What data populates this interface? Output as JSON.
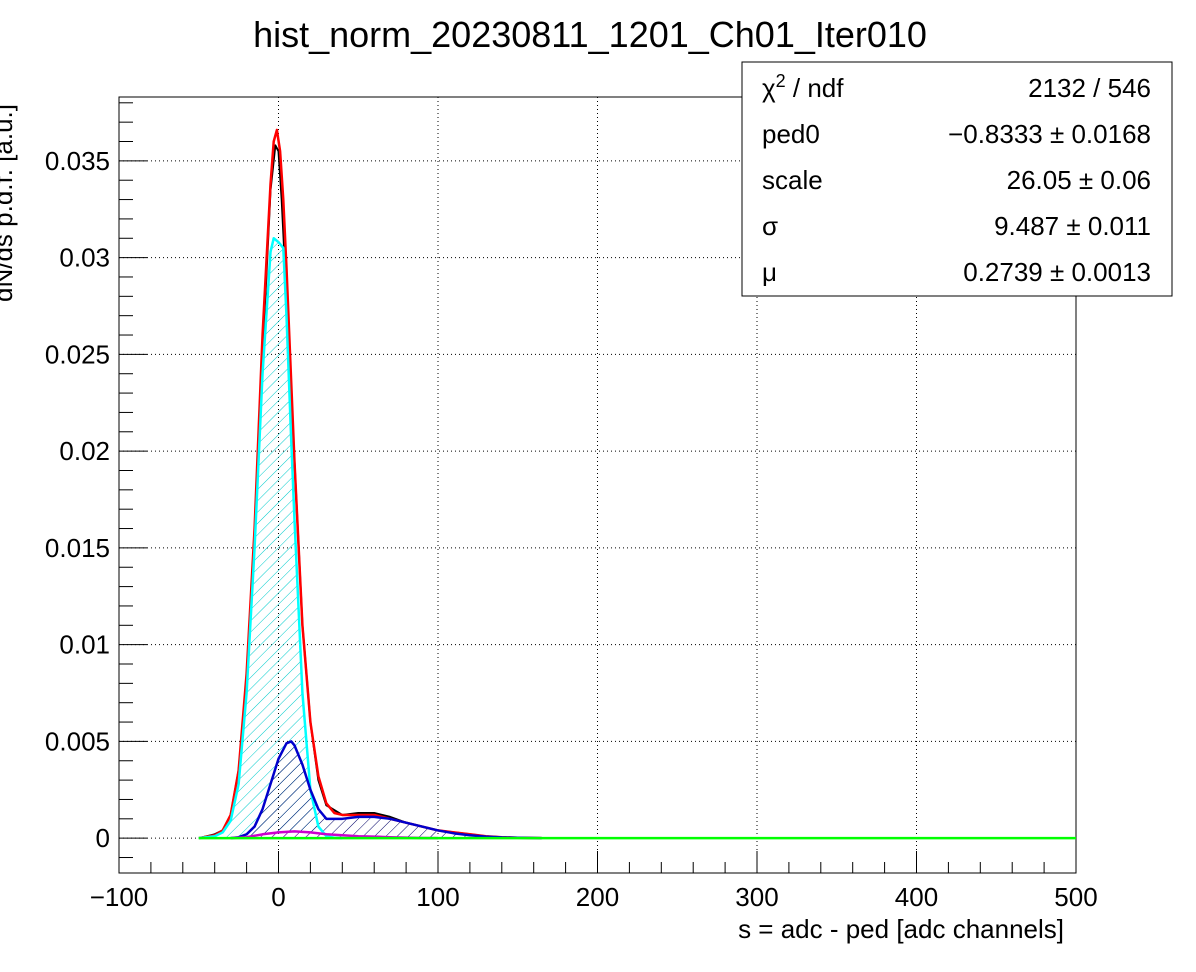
{
  "chart_data": {
    "type": "line",
    "title": "hist_norm_20230811_1201_Ch01_Iter010",
    "xlabel": "s = adc - ped [adc channels]",
    "ylabel": "dN/ds p.d.f. [a.u.]",
    "xlim": [
      -100,
      500
    ],
    "ylim": [
      -0.0018,
      0.0383
    ],
    "x_ticks": [
      -100,
      0,
      100,
      200,
      300,
      400,
      500
    ],
    "x_tick_labels": [
      "−100",
      "0",
      "100",
      "200",
      "300",
      "400",
      "500"
    ],
    "y_ticks": [
      0,
      0.005,
      0.01,
      0.015,
      0.02,
      0.025,
      0.03,
      0.035
    ],
    "y_tick_labels": [
      "0",
      "0.005",
      "0.01",
      "0.015",
      "0.02",
      "0.025",
      "0.03",
      "0.035"
    ],
    "grid": true,
    "stats_box": {
      "position": "top-right",
      "rows": [
        {
          "key_base": "χ",
          "key_sup": "2",
          "key_rest": " / ndf",
          "value": "2132 / 546"
        },
        {
          "key_base": "ped0",
          "key_sup": "",
          "key_rest": "",
          "value": "−0.8333 ± 0.0168"
        },
        {
          "key_base": "scale",
          "key_sup": "",
          "key_rest": "",
          "value": "26.05 ± 0.06"
        },
        {
          "key_base": "σ",
          "key_sup": "",
          "key_rest": "",
          "value": "9.487 ± 0.011"
        },
        {
          "key_base": "μ",
          "key_sup": "",
          "key_rest": "",
          "value": "0.2739 ± 0.0013"
        }
      ]
    },
    "series": [
      {
        "color": "#000000",
        "x": [
          -50,
          -40,
          -35,
          -30,
          -25,
          -20,
          -15,
          -10,
          -5,
          -2,
          0,
          2,
          5,
          10,
          15,
          20,
          25,
          30,
          40,
          50,
          60,
          70,
          80,
          90,
          100,
          110,
          120,
          130,
          140,
          150,
          160,
          165
        ],
        "y": [
          0.0,
          0.0002,
          0.0004,
          0.0012,
          0.0035,
          0.008,
          0.0155,
          0.025,
          0.0335,
          0.0358,
          0.0355,
          0.033,
          0.028,
          0.0195,
          0.011,
          0.006,
          0.003,
          0.0017,
          0.0012,
          0.0013,
          0.0013,
          0.0011,
          0.0008,
          0.0006,
          0.0004,
          0.0003,
          0.0002,
          0.0001,
          5e-05,
          2e-05,
          1e-05,
          0.0
        ]
      },
      {
        "color": "#ff0000",
        "x": [
          -50,
          -40,
          -35,
          -30,
          -25,
          -20,
          -15,
          -10,
          -5,
          -3,
          -1,
          1,
          3,
          5,
          8,
          10,
          15,
          20,
          25,
          30,
          35,
          40,
          50,
          60,
          70,
          80,
          90,
          100,
          110,
          120,
          130,
          140,
          150,
          165
        ],
        "y": [
          0.0,
          0.00015,
          0.0004,
          0.0012,
          0.0035,
          0.0085,
          0.016,
          0.026,
          0.0338,
          0.036,
          0.0366,
          0.0355,
          0.033,
          0.0295,
          0.0235,
          0.0195,
          0.011,
          0.006,
          0.0032,
          0.0018,
          0.0013,
          0.0012,
          0.0012,
          0.0012,
          0.001,
          0.0008,
          0.0006,
          0.0004,
          0.0003,
          0.0002,
          0.0001,
          5e-05,
          2e-05,
          0.0
        ]
      },
      {
        "color": "#00ffff",
        "x": [
          -50,
          -40,
          -35,
          -30,
          -25,
          -20,
          -15,
          -10,
          -5,
          -3,
          0,
          3,
          5,
          8,
          10,
          15,
          20,
          25,
          30,
          35,
          40
        ],
        "y": [
          0.0,
          0.0001,
          0.0003,
          0.0009,
          0.0028,
          0.0075,
          0.015,
          0.024,
          0.0303,
          0.031,
          0.0308,
          0.0305,
          0.027,
          0.0205,
          0.0165,
          0.0075,
          0.0025,
          0.0006,
          0.0001,
          2e-05,
          0.0
        ]
      },
      {
        "color": "#0000cc",
        "x": [
          -30,
          -25,
          -20,
          -15,
          -10,
          -5,
          0,
          5,
          8,
          10,
          15,
          20,
          25,
          30,
          35,
          40,
          50,
          60,
          70,
          80,
          90,
          100,
          110,
          120,
          130,
          140,
          150,
          165
        ],
        "y": [
          0.0,
          5e-05,
          0.0002,
          0.0006,
          0.0015,
          0.0028,
          0.0041,
          0.0049,
          0.005,
          0.0048,
          0.0038,
          0.0025,
          0.0015,
          0.001,
          0.001,
          0.001,
          0.0011,
          0.0011,
          0.001,
          0.0008,
          0.0006,
          0.0004,
          0.00025,
          0.00015,
          8e-05,
          4e-05,
          2e-05,
          0.0
        ]
      },
      {
        "color": "#cc00cc",
        "x": [
          -30,
          -20,
          -10,
          0,
          10,
          20,
          30,
          40,
          50,
          60,
          70,
          80,
          90,
          100
        ],
        "y": [
          0.0,
          5e-05,
          0.0002,
          0.0003,
          0.00035,
          0.0003,
          0.0002,
          0.00015,
          0.0001,
          8e-05,
          5e-05,
          3e-05,
          1e-05,
          0.0
        ]
      },
      {
        "color": "#00ff00",
        "x": [
          -50,
          500
        ],
        "y": [
          0.0,
          0.0
        ]
      }
    ],
    "hatch_fills": [
      {
        "series_index": 2,
        "color": "#00cccc"
      },
      {
        "series_index": 3,
        "color": "#000088"
      },
      {
        "series_index": 4,
        "color": "#cc00cc"
      }
    ]
  }
}
